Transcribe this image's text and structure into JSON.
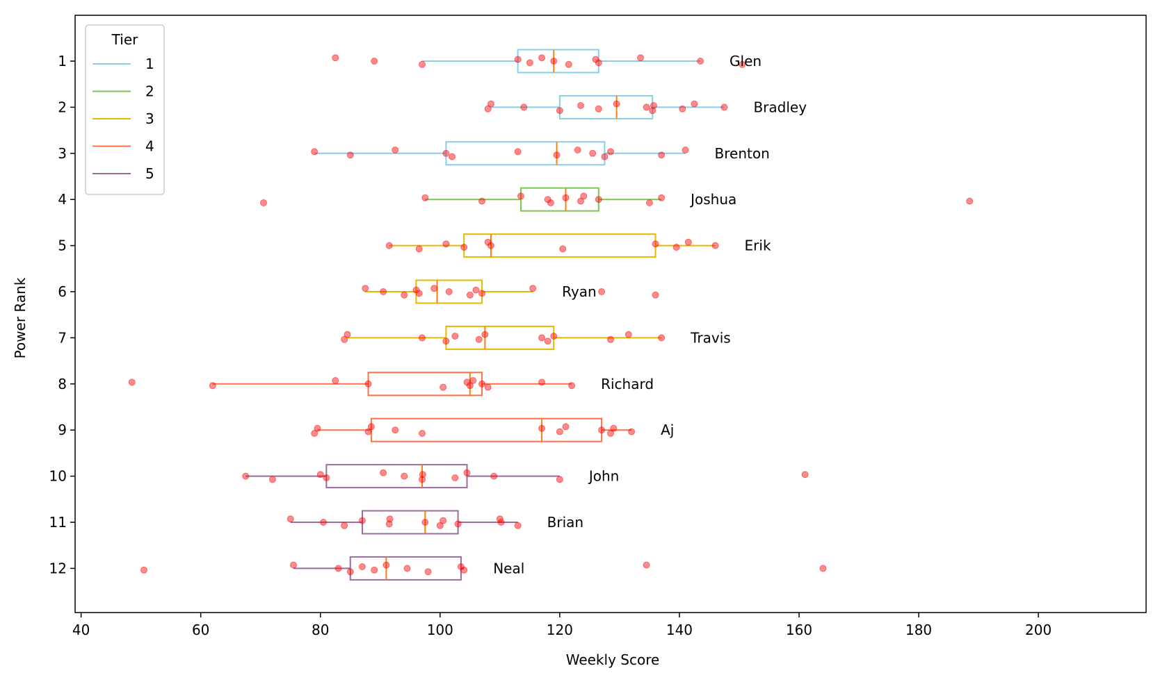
{
  "chart_data": {
    "type": "boxplot",
    "orientation": "horizontal",
    "xlabel": "Weekly Score",
    "ylabel": "Power Rank",
    "xlim": [
      39,
      218
    ],
    "x_ticks": [
      40,
      60,
      80,
      100,
      120,
      140,
      160,
      180,
      200
    ],
    "y_ticks": [
      "1",
      "2",
      "3",
      "4",
      "5",
      "6",
      "7",
      "8",
      "9",
      "10",
      "11",
      "12"
    ],
    "legend": {
      "title": "Tier",
      "placement": "top-left",
      "entries": [
        {
          "label": "1",
          "color": "#87ceeb"
        },
        {
          "label": "2",
          "color": "#7ac74f"
        },
        {
          "label": "3",
          "color": "#e6b800"
        },
        {
          "label": "4",
          "color": "#ff7043"
        },
        {
          "label": "5",
          "color": "#9b6b9e"
        }
      ]
    },
    "median_color": "#ff7f0e",
    "point_color": "#ff0000",
    "rows": [
      {
        "rank": "1",
        "name": "Glen",
        "tier": 1,
        "whisker_low": 97,
        "q1": 113,
        "median": 119,
        "q3": 126.5,
        "whisker_high": 143.5,
        "points": [
          82.5,
          89,
          97,
          113,
          115,
          117,
          119,
          121.5,
          126,
          126.5,
          133.5,
          143.5,
          150.5
        ]
      },
      {
        "rank": "2",
        "name": "Bradley",
        "tier": 1,
        "whisker_low": 108.5,
        "q1": 120,
        "median": 129.5,
        "q3": 135.5,
        "whisker_high": 147.5,
        "points": [
          108,
          108.5,
          114,
          120,
          123.5,
          126.5,
          129.5,
          134.5,
          135.5,
          135.7,
          140.5,
          142.5,
          147.5
        ]
      },
      {
        "rank": "3",
        "name": "Brenton",
        "tier": 1,
        "whisker_low": 79,
        "q1": 101,
        "median": 119.5,
        "q3": 127.5,
        "whisker_high": 141,
        "points": [
          79,
          85,
          92.5,
          101,
          102,
          113,
          119.5,
          123,
          125.5,
          127.5,
          128.5,
          137,
          141
        ]
      },
      {
        "rank": "4",
        "name": "Joshua",
        "tier": 2,
        "whisker_low": 97.5,
        "q1": 113.5,
        "median": 121,
        "q3": 126.5,
        "whisker_high": 137,
        "points": [
          70.5,
          97.5,
          107,
          113.5,
          118,
          118.5,
          121,
          123.5,
          124,
          126.5,
          135,
          137,
          188.5
        ]
      },
      {
        "rank": "5",
        "name": "Erik",
        "tier": 3,
        "whisker_low": 91.5,
        "q1": 104,
        "median": 108.5,
        "q3": 136,
        "whisker_high": 146,
        "points": [
          91.5,
          96.5,
          101,
          104,
          108,
          108.5,
          120.5,
          136,
          139.5,
          141.5,
          146
        ]
      },
      {
        "rank": "6",
        "name": "Ryan",
        "tier": 3,
        "whisker_low": 87.5,
        "q1": 96,
        "median": 99.5,
        "q3": 107,
        "whisker_high": 115.5,
        "points": [
          87.5,
          90.5,
          94,
          96,
          96.5,
          99,
          101.5,
          105,
          106,
          107,
          115.5,
          127,
          136
        ]
      },
      {
        "rank": "7",
        "name": "Travis",
        "tier": 3,
        "whisker_low": 84.5,
        "q1": 101,
        "median": 107.5,
        "q3": 119,
        "whisker_high": 137,
        "points": [
          84,
          84.5,
          97,
          101,
          102.5,
          106.5,
          107.5,
          117,
          118,
          119,
          128.5,
          131.5,
          137
        ]
      },
      {
        "rank": "8",
        "name": "Richard",
        "tier": 4,
        "whisker_low": 62,
        "q1": 88,
        "median": 105,
        "q3": 107,
        "whisker_high": 122,
        "points": [
          48.5,
          62,
          82.5,
          88,
          100.5,
          104.5,
          105,
          105.5,
          107,
          108,
          117,
          122
        ]
      },
      {
        "rank": "9",
        "name": "Aj",
        "tier": 4,
        "whisker_low": 79.5,
        "q1": 88.5,
        "median": 117,
        "q3": 127,
        "whisker_high": 132,
        "points": [
          79,
          79.5,
          88,
          88.5,
          92.5,
          97,
          117,
          120,
          121,
          127,
          128.5,
          129,
          132
        ]
      },
      {
        "rank": "10",
        "name": "John",
        "tier": 5,
        "whisker_low": 67.5,
        "q1": 81,
        "median": 97,
        "q3": 104.5,
        "whisker_high": 120,
        "points": [
          67.5,
          72,
          80,
          81,
          90.5,
          94,
          97,
          97.1,
          102.5,
          104.5,
          109,
          120,
          161
        ]
      },
      {
        "rank": "11",
        "name": "Brian",
        "tier": 5,
        "whisker_low": 75,
        "q1": 87,
        "median": 97.5,
        "q3": 103,
        "whisker_high": 113,
        "points": [
          75,
          80.5,
          84,
          87,
          91.5,
          91.6,
          97.5,
          100,
          100.5,
          103,
          110,
          110.2,
          113
        ]
      },
      {
        "rank": "12",
        "name": "Neal",
        "tier": 5,
        "whisker_low": 75.5,
        "q1": 85,
        "median": 91,
        "q3": 103.5,
        "whisker_high": 104,
        "points": [
          50.5,
          75.5,
          83,
          85,
          87,
          89,
          91,
          94.5,
          98,
          103.5,
          104,
          134.5,
          164
        ]
      }
    ]
  }
}
